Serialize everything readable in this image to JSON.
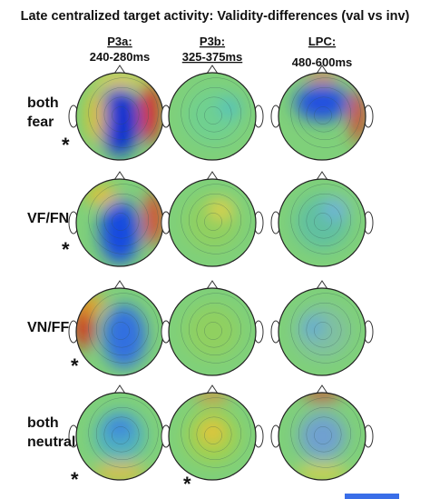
{
  "title": "Late centralized target activity: Validity-differences (val vs inv)",
  "columns": [
    {
      "name": "P3a:",
      "window": "240-280ms"
    },
    {
      "name": "P3b:",
      "window": "325-375ms"
    },
    {
      "name": "LPC:",
      "window": "480-600ms"
    }
  ],
  "rows": [
    {
      "label": [
        "both",
        "fear"
      ],
      "asterisks": [
        "*"
      ]
    },
    {
      "label": [
        "VF/FN"
      ],
      "asterisks": [
        "*"
      ]
    },
    {
      "label": [
        "VN/FF"
      ],
      "asterisks": [
        "*"
      ]
    },
    {
      "label": [
        "both",
        "neutral"
      ],
      "asterisks": [
        "*",
        "*"
      ]
    }
  ]
}
